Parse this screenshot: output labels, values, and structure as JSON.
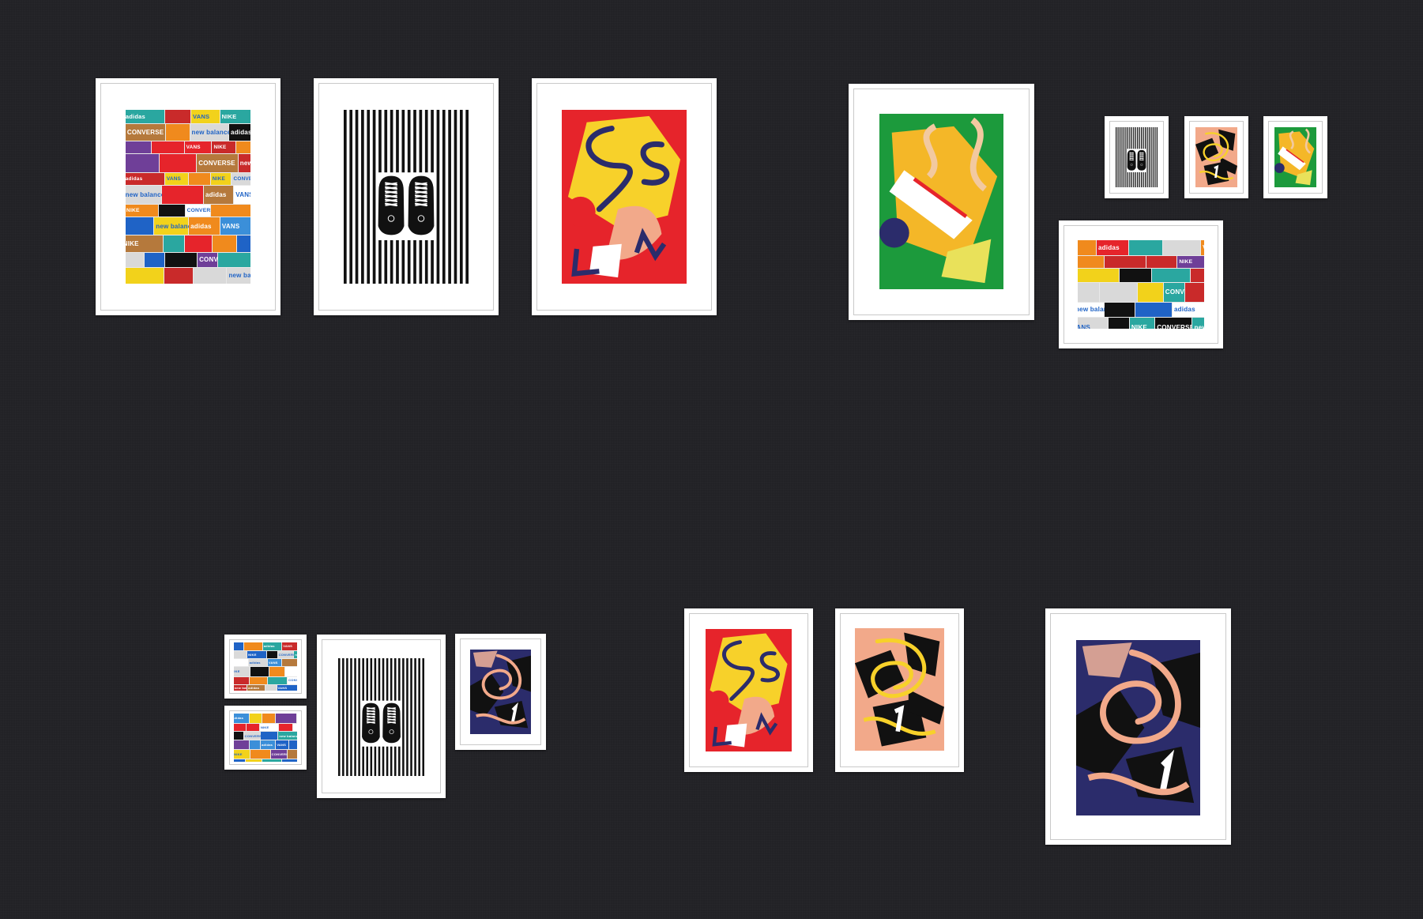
{
  "brand_labels": [
    "adidas",
    "VANS",
    "NIKE",
    "CONVERSE",
    "new balance"
  ],
  "colors": {
    "wall": "#222226",
    "frame": "#ffffff",
    "red": "#e6242b",
    "yellow": "#f7d12a",
    "navy": "#2b2c6b",
    "peach": "#f2a98a",
    "green": "#1c9a3c",
    "black": "#111111"
  },
  "artworks": [
    {
      "name": "sneaker-boxes-poster",
      "style": "boxes"
    },
    {
      "name": "sneaker-stripes-poster",
      "style": "stripes"
    },
    {
      "name": "red-abstract-poster",
      "style": "red-abstract"
    },
    {
      "name": "green-abstract-poster",
      "style": "green-abstract"
    },
    {
      "name": "navy-abstract-poster",
      "style": "navy-abstract"
    },
    {
      "name": "peach-abstract-poster",
      "style": "peach-abstract"
    }
  ]
}
